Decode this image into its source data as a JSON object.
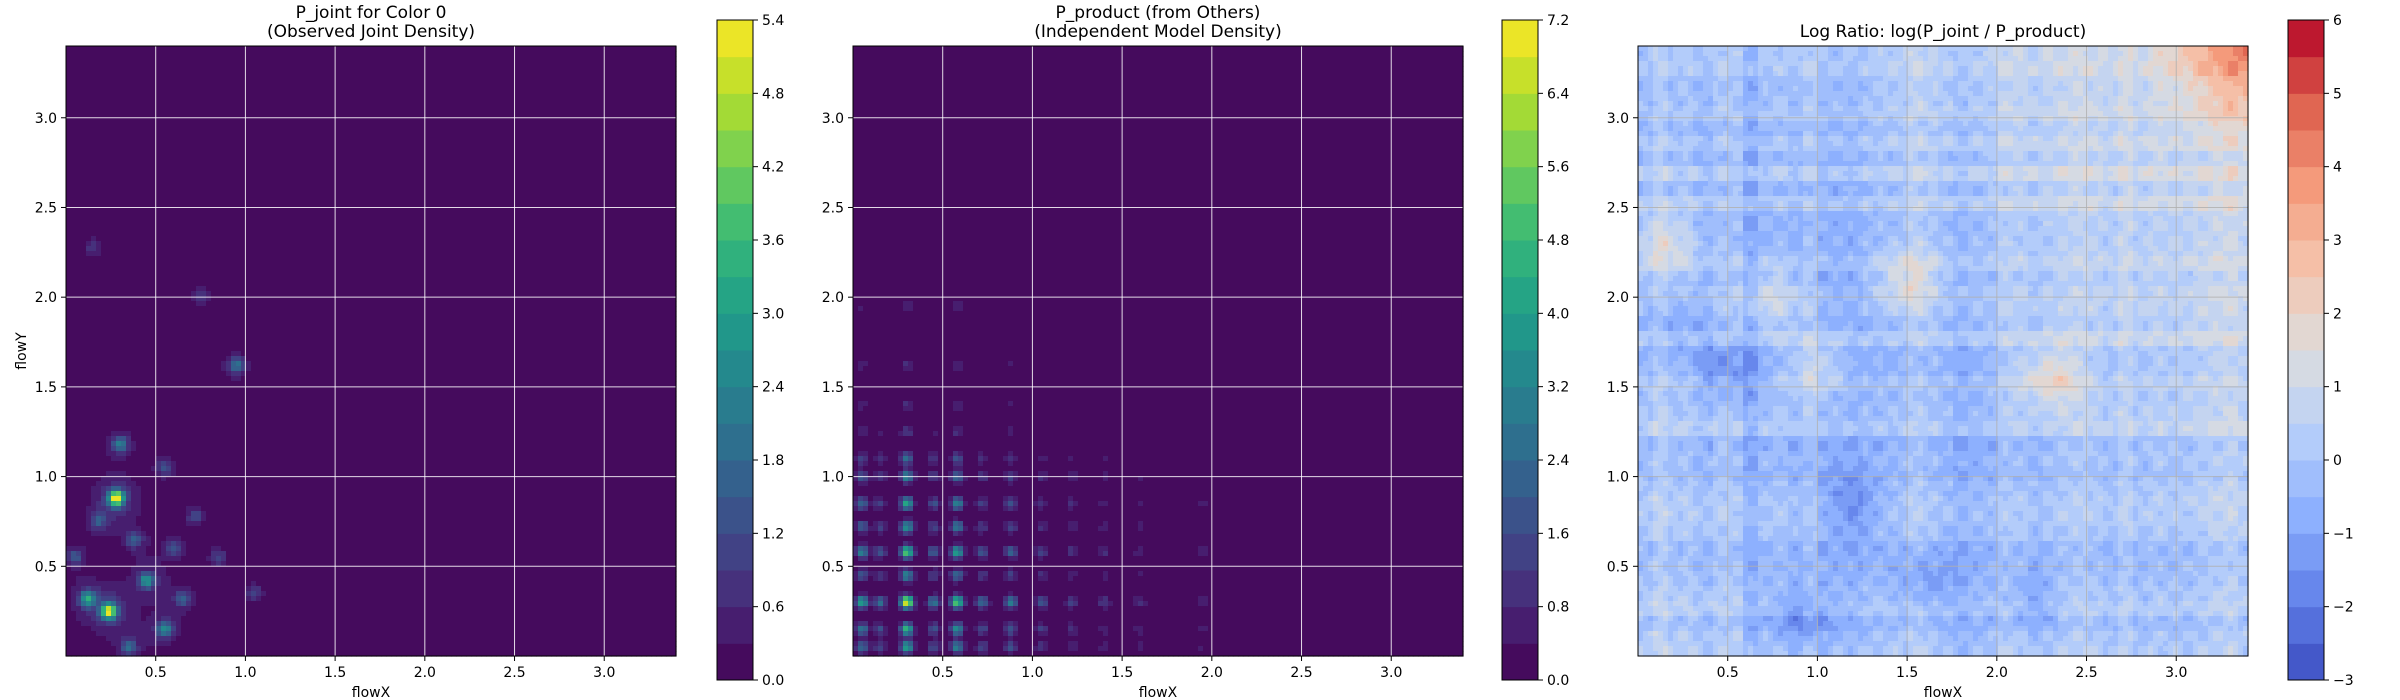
{
  "chart_data": [
    {
      "type": "heatmap",
      "title": [
        "P_joint for Color 0",
        "(Observed Joint Density)"
      ],
      "xlabel": "flowX",
      "ylabel": "flowY",
      "xlim": [
        0.0,
        3.4
      ],
      "ylim": [
        0.0,
        3.4
      ],
      "xticks": [
        0.5,
        1.0,
        1.5,
        2.0,
        2.5,
        3.0
      ],
      "yticks": [
        0.5,
        1.0,
        1.5,
        2.0,
        2.5,
        3.0
      ],
      "grid": true,
      "colormap": "viridis",
      "colorbar": {
        "range": [
          0.0,
          5.4
        ],
        "ticks": [
          0.0,
          0.6,
          1.2,
          1.8,
          2.4,
          3.0,
          3.6,
          4.2,
          4.8,
          5.4
        ],
        "levels": 18
      },
      "peaks": [
        {
          "x": 0.28,
          "y": 0.88,
          "value": 4.9
        },
        {
          "x": 0.24,
          "y": 0.25,
          "value": 4.6
        },
        {
          "x": 0.12,
          "y": 0.32,
          "value": 2.6
        },
        {
          "x": 0.45,
          "y": 0.42,
          "value": 2.5
        },
        {
          "x": 0.3,
          "y": 1.18,
          "value": 2.0
        },
        {
          "x": 0.55,
          "y": 0.15,
          "value": 2.2
        },
        {
          "x": 0.95,
          "y": 1.62,
          "value": 1.8
        },
        {
          "x": 0.38,
          "y": 0.65,
          "value": 1.5
        },
        {
          "x": 0.18,
          "y": 0.75,
          "value": 1.3
        },
        {
          "x": 0.65,
          "y": 0.32,
          "value": 1.4
        },
        {
          "x": 0.72,
          "y": 0.78,
          "value": 1.0
        },
        {
          "x": 0.55,
          "y": 1.05,
          "value": 1.1
        },
        {
          "x": 0.05,
          "y": 0.55,
          "value": 1.3
        },
        {
          "x": 0.85,
          "y": 0.55,
          "value": 0.9
        },
        {
          "x": 1.05,
          "y": 0.35,
          "value": 0.9
        },
        {
          "x": 0.75,
          "y": 2.0,
          "value": 0.8
        },
        {
          "x": 0.15,
          "y": 2.28,
          "value": 0.7
        },
        {
          "x": 0.35,
          "y": 0.05,
          "value": 1.6
        },
        {
          "x": 0.6,
          "y": 0.6,
          "value": 1.2
        }
      ]
    },
    {
      "type": "heatmap",
      "title": [
        "P_product (from Others)",
        "(Independent Model Density)"
      ],
      "xlabel": "flowX",
      "ylabel": "",
      "xlim": [
        0.0,
        3.4
      ],
      "ylim": [
        0.0,
        3.4
      ],
      "xticks": [
        0.5,
        1.0,
        1.5,
        2.0,
        2.5,
        3.0
      ],
      "yticks": [
        0.5,
        1.0,
        1.5,
        2.0,
        2.5,
        3.0
      ],
      "grid": true,
      "colormap": "viridis",
      "colorbar": {
        "range": [
          0.0,
          7.2
        ],
        "ticks": [
          0.0,
          0.8,
          1.6,
          2.4,
          3.2,
          4.0,
          4.8,
          5.6,
          6.4,
          7.2
        ],
        "levels": 18
      },
      "x_marginal": [
        {
          "x": 0.05,
          "w": 1.0
        },
        {
          "x": 0.15,
          "w": 0.6
        },
        {
          "x": 0.3,
          "w": 1.7
        },
        {
          "x": 0.45,
          "w": 0.7
        },
        {
          "x": 0.58,
          "w": 1.3
        },
        {
          "x": 0.72,
          "w": 0.6
        },
        {
          "x": 0.88,
          "w": 0.7
        },
        {
          "x": 1.05,
          "w": 0.45
        },
        {
          "x": 1.22,
          "w": 0.35
        },
        {
          "x": 1.4,
          "w": 0.3
        },
        {
          "x": 1.6,
          "w": 0.25
        },
        {
          "x": 1.95,
          "w": 0.2
        }
      ],
      "y_marginal": [
        {
          "y": 0.05,
          "w": 1.0
        },
        {
          "y": 0.15,
          "w": 1.1
        },
        {
          "y": 0.3,
          "w": 1.7
        },
        {
          "y": 0.45,
          "w": 0.8
        },
        {
          "y": 0.58,
          "w": 1.3
        },
        {
          "y": 0.72,
          "w": 0.9
        },
        {
          "y": 0.85,
          "w": 1.0
        },
        {
          "y": 1.0,
          "w": 0.8
        },
        {
          "y": 1.1,
          "w": 0.6
        },
        {
          "y": 1.25,
          "w": 0.3
        },
        {
          "y": 1.4,
          "w": 0.25
        },
        {
          "y": 1.62,
          "w": 0.25
        },
        {
          "y": 1.95,
          "w": 0.2
        }
      ]
    },
    {
      "type": "heatmap",
      "title": [
        "Log Ratio: log(P_joint / P_product)"
      ],
      "xlabel": "flowX",
      "ylabel": "",
      "xlim": [
        0.0,
        3.4
      ],
      "ylim": [
        0.0,
        3.4
      ],
      "xticks": [
        0.5,
        1.0,
        1.5,
        2.0,
        2.5,
        3.0
      ],
      "yticks": [
        0.5,
        1.0,
        1.5,
        2.0,
        2.5,
        3.0
      ],
      "grid": true,
      "colormap": "coolwarm",
      "colorbar": {
        "range": [
          -3,
          6
        ],
        "ticks": [
          -3,
          -2,
          -1,
          0,
          1,
          2,
          3,
          4,
          5,
          6
        ],
        "levels": 18
      },
      "hot_region": {
        "x": [
          2.8,
          3.4
        ],
        "y": [
          2.8,
          3.4
        ],
        "value": 5.5
      },
      "warm_spots": [
        {
          "x": 2.3,
          "y": 1.55,
          "value": 3.0
        },
        {
          "x": 1.5,
          "y": 2.1,
          "value": 2.6
        },
        {
          "x": 0.15,
          "y": 2.3,
          "value": 2.4
        },
        {
          "x": 0.75,
          "y": 2.0,
          "value": 2.0
        },
        {
          "x": 1.0,
          "y": 1.6,
          "value": 2.2
        }
      ],
      "cool_spots": [
        {
          "x": 0.5,
          "y": 1.6,
          "value": -1.5
        },
        {
          "x": 1.2,
          "y": 0.85,
          "value": -1.4
        },
        {
          "x": 1.6,
          "y": 0.4,
          "value": -1.3
        },
        {
          "x": 0.9,
          "y": 0.2,
          "value": -1.6
        },
        {
          "x": 2.2,
          "y": 0.3,
          "value": -1.0
        },
        {
          "x": 0.2,
          "y": 1.85,
          "value": -1.0
        }
      ]
    }
  ]
}
